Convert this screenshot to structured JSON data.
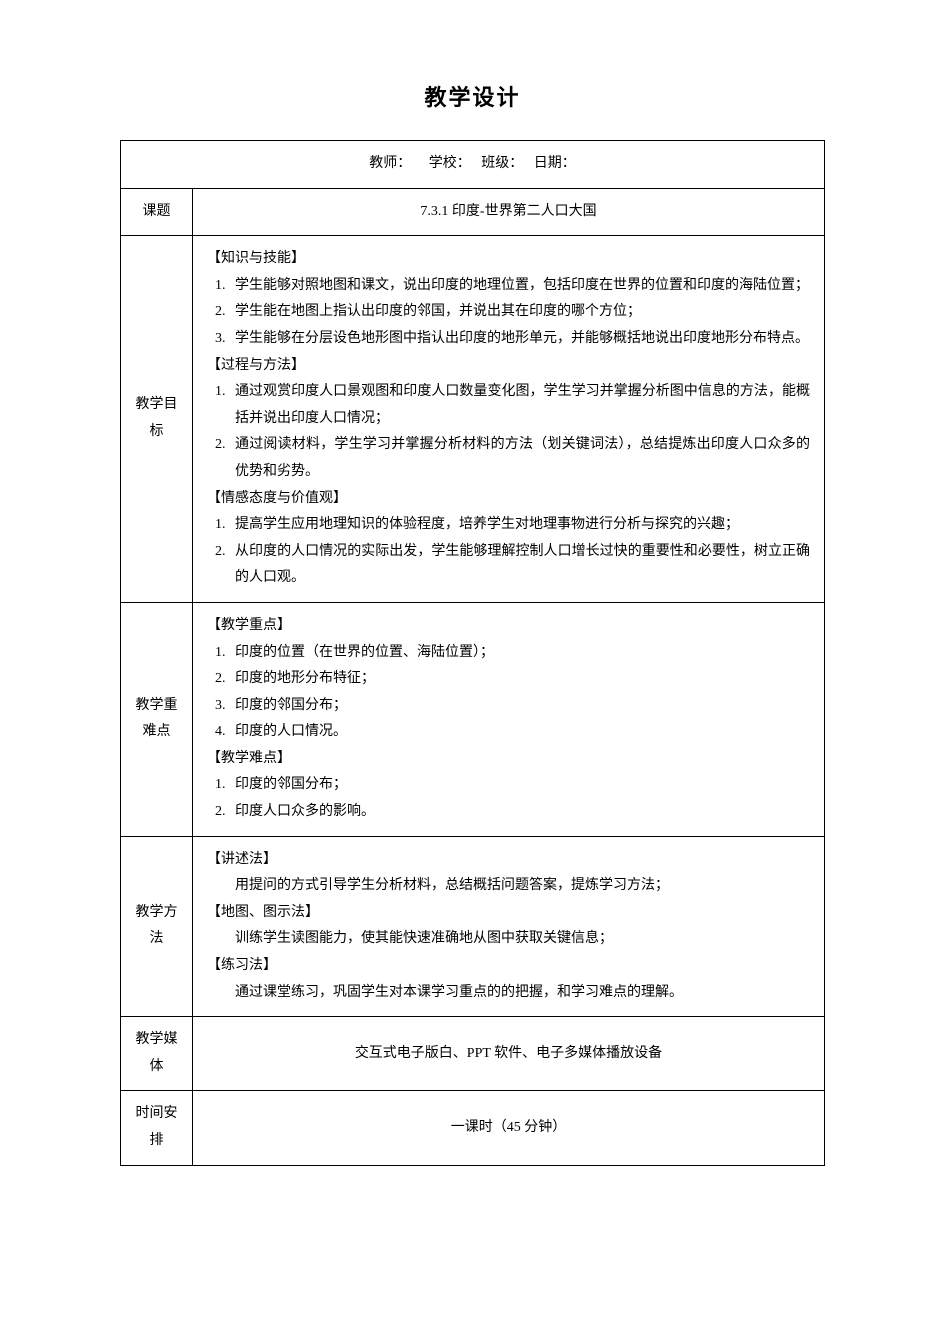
{
  "title": "教学设计",
  "header": {
    "teacher_label": "教师：",
    "school_label": "学校：",
    "class_label": "班级：",
    "date_label": "日期："
  },
  "rows": {
    "topic": {
      "label": "课题",
      "value": "7.3.1 印度-世界第二人口大国"
    },
    "goals": {
      "label": "教学目标",
      "s1_head": "【知识与技能】",
      "s1_1": "学生能够对照地图和课文，说出印度的地理位置，包括印度在世界的位置和印度的海陆位置；",
      "s1_2": "学生能在地图上指认出印度的邻国，并说出其在印度的哪个方位；",
      "s1_3": "学生能够在分层设色地形图中指认出印度的地形单元，并能够概括地说出印度地形分布特点。",
      "s2_head": "【过程与方法】",
      "s2_1": "通过观赏印度人口景观图和印度人口数量变化图，学生学习并掌握分析图中信息的方法，能概括并说出印度人口情况；",
      "s2_2": "通过阅读材料，学生学习并掌握分析材料的方法（划关键词法），总结提炼出印度人口众多的优势和劣势。",
      "s3_head": "【情感态度与价值观】",
      "s3_1": "提高学生应用地理知识的体验程度，培养学生对地理事物进行分析与探究的兴趣；",
      "s3_2": "从印度的人口情况的实际出发，学生能够理解控制人口增长过快的重要性和必要性，树立正确的人口观。"
    },
    "keydiff": {
      "label": "教学重难点",
      "s1_head": "【教学重点】",
      "s1_1": "印度的位置（在世界的位置、海陆位置）；",
      "s1_2": "印度的地形分布特征；",
      "s1_3": "印度的邻国分布；",
      "s1_4": "印度的人口情况。",
      "s2_head": "【教学难点】",
      "s2_1": "印度的邻国分布；",
      "s2_2": "印度人口众多的影响。"
    },
    "method": {
      "label": "教学方法",
      "s1_head": "【讲述法】",
      "s1_body": "用提问的方式引导学生分析材料，总结概括问题答案，提炼学习方法；",
      "s2_head": "【地图、图示法】",
      "s2_body": "训练学生读图能力，使其能快速准确地从图中获取关键信息；",
      "s3_head": "【练习法】",
      "s3_body": "通过课堂练习，巩固学生对本课学习重点的的把握，和学习难点的理解。"
    },
    "media": {
      "label": "教学媒体",
      "value": "交互式电子版白、PPT 软件、电子多媒体播放设备"
    },
    "time": {
      "label": "时间安排",
      "value": "一课时（45 分钟）"
    }
  }
}
